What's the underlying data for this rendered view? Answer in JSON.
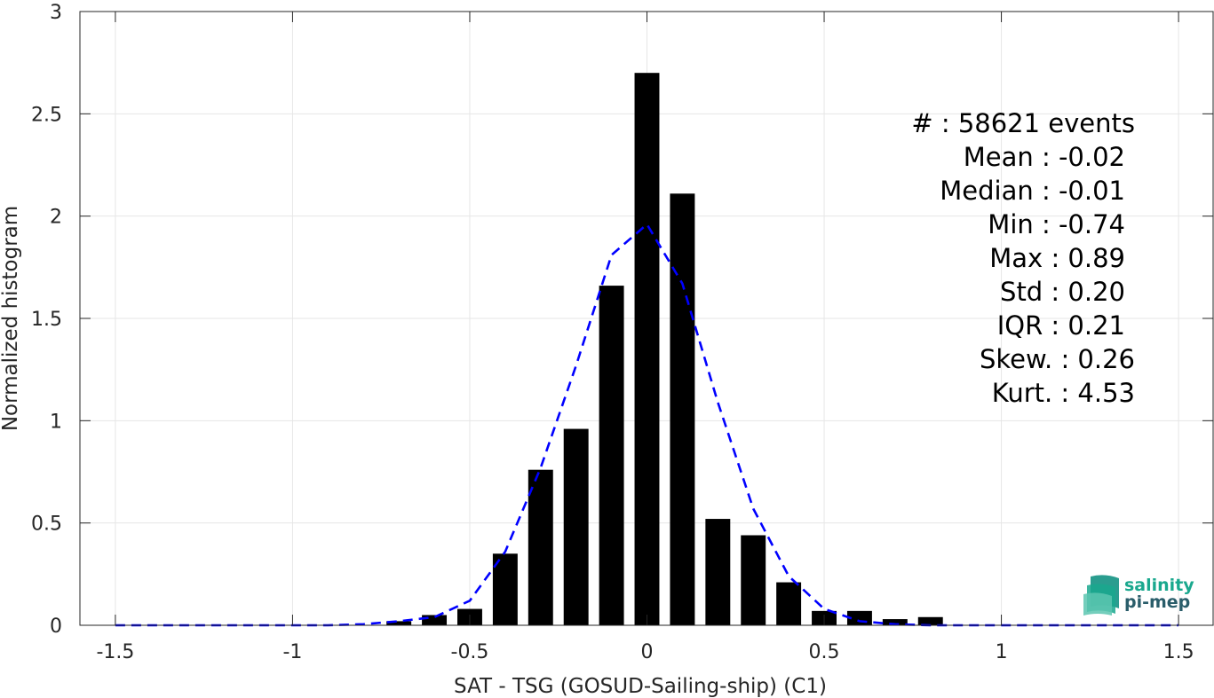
{
  "chart_data": {
    "type": "bar",
    "xlabel": "SAT - TSG (GOSUD-Sailing-ship) (C1)",
    "ylabel": "Normalized histogram",
    "xlim": [
      -1.6,
      1.6
    ],
    "ylim": [
      0,
      3
    ],
    "grid": true,
    "x_ticks": [
      -1.5,
      -1,
      -0.5,
      0,
      0.5,
      1,
      1.5
    ],
    "x_tick_labels": [
      "-1.5",
      "-1",
      "-0.5",
      "0",
      "0.5",
      "1",
      "1.5"
    ],
    "y_ticks": [
      0,
      0.5,
      1,
      1.5,
      2,
      2.5,
      3
    ],
    "y_tick_labels": [
      "0",
      "0.5",
      "1",
      "1.5",
      "2",
      "2.5",
      "3"
    ],
    "bar_width": 0.07,
    "bars": {
      "name": "histogram",
      "color": "#000000",
      "x": [
        -0.7,
        -0.6,
        -0.5,
        -0.4,
        -0.3,
        -0.2,
        -0.1,
        0.0,
        0.1,
        0.2,
        0.3,
        0.4,
        0.5,
        0.6,
        0.7,
        0.8
      ],
      "values": [
        0.02,
        0.05,
        0.08,
        0.35,
        0.76,
        0.96,
        1.66,
        2.7,
        2.11,
        0.52,
        0.44,
        0.21,
        0.07,
        0.07,
        0.03,
        0.04
      ]
    },
    "curve": {
      "name": "fit",
      "color": "#0000ff",
      "style": "dashed",
      "x": [
        -1.5,
        -1.4,
        -1.3,
        -1.2,
        -1.1,
        -1.0,
        -0.9,
        -0.8,
        -0.7,
        -0.6,
        -0.5,
        -0.4,
        -0.3,
        -0.2,
        -0.1,
        0.0,
        0.1,
        0.2,
        0.3,
        0.4,
        0.5,
        0.6,
        0.7,
        0.8,
        0.9,
        1.0,
        1.1,
        1.2,
        1.3,
        1.4,
        1.5
      ],
      "values": [
        0,
        0,
        0,
        0,
        0,
        0,
        0,
        0.005,
        0.02,
        0.04,
        0.12,
        0.36,
        0.77,
        1.27,
        1.81,
        1.96,
        1.67,
        1.09,
        0.57,
        0.24,
        0.08,
        0.02,
        0.005,
        0,
        0,
        0,
        0,
        0,
        0,
        0,
        0
      ]
    }
  },
  "stats": {
    "lines": [
      "#  : 58621 events",
      "Mean : -0.02",
      "Median : -0.01",
      "Min : -0.74",
      "Max : 0.89",
      "Std : 0.20",
      "IQR : 0.21",
      "Skew. : 0.26",
      "Kurt. : 4.53"
    ]
  },
  "logo": {
    "line1": "salinity",
    "line2": "pi-mep",
    "color_teal": "#1aa88e",
    "color_dark": "#2a5d6a"
  },
  "colors": {
    "axis": "#262626",
    "grid": "#e6e6e6",
    "bar": "#000000",
    "curve": "#0000ff"
  }
}
